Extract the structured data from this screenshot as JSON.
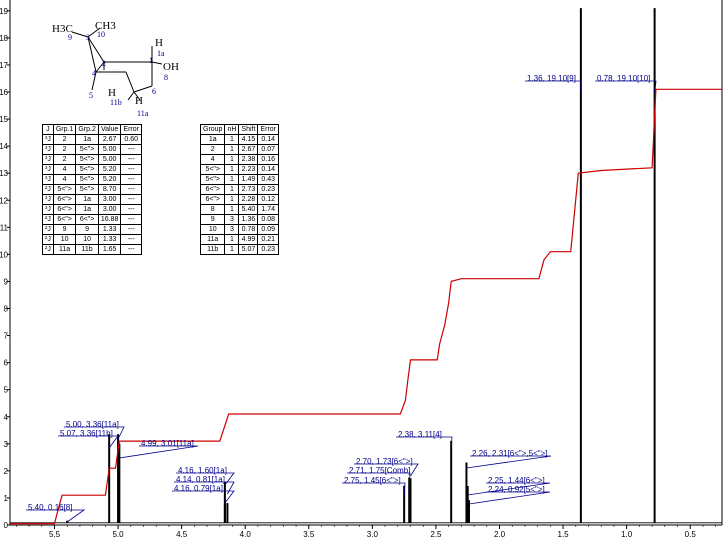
{
  "chart_data": {
    "type": "line",
    "title": "",
    "xlabel": "",
    "ylabel": "",
    "xlim": [
      5.85,
      0.25
    ],
    "ylim": [
      0,
      19.4
    ],
    "x_ticks": [
      "5.5",
      "5.0",
      "4.5",
      "4.0",
      "3.5",
      "3.0",
      "2.5",
      "2.0",
      "1.5",
      "1.0",
      "0.5"
    ],
    "x_tick_values": [
      5.5,
      5.0,
      4.5,
      4.0,
      3.5,
      3.0,
      2.5,
      2.0,
      1.5,
      1.0,
      0.5
    ],
    "y_ticks": [
      "0",
      "1",
      "2",
      "3",
      "4",
      "5",
      "6",
      "7",
      "8",
      "9",
      "10",
      "11",
      "12",
      "13",
      "14",
      "15",
      "16",
      "17",
      "18",
      "19"
    ],
    "grid": false,
    "colors": {
      "spectrum": "#000000",
      "integral": "#cc0000",
      "label_line": "#00008b",
      "label_text": "#00008b"
    },
    "peaks": [
      {
        "shift": 5.4,
        "height": 0.16,
        "label": "5.40, 0.16[8]"
      },
      {
        "shift": 5.07,
        "height": 3.36,
        "label": "5.07, 3.36[11b]"
      },
      {
        "shift": 5.0,
        "height": 3.36,
        "label": "5.00, 3.36[11a]"
      },
      {
        "shift": 4.99,
        "height": 3.01,
        "label": "4.99, 3.01[11a]"
      },
      {
        "shift": 4.16,
        "height": 1.6,
        "label": "4.16, 1.60[1a]"
      },
      {
        "shift": 4.14,
        "height": 0.81,
        "label": "4.14, 0.81[1a]"
      },
      {
        "shift": 4.16,
        "height": 0.79,
        "label": "4.16, 0.79[1a]"
      },
      {
        "shift": 2.75,
        "height": 1.45,
        "label": "2.75, 1.45[6<\">]"
      },
      {
        "shift": 2.71,
        "height": 1.75,
        "label": "2.71, 1.75[Comb]"
      },
      {
        "shift": 2.7,
        "height": 1.73,
        "label": "2.70, 1.73[6<\">]"
      },
      {
        "shift": 2.38,
        "height": 3.11,
        "label": "2.38, 3.11[4]"
      },
      {
        "shift": 2.26,
        "height": 2.31,
        "label": "2.26, 2.31[6<\">,5<\">]"
      },
      {
        "shift": 2.25,
        "height": 1.44,
        "label": "2.25, 1.44[6<\">]"
      },
      {
        "shift": 2.24,
        "height": 0.92,
        "label": "2.24, 0.92[5<\">]"
      },
      {
        "shift": 1.36,
        "height": 19.1,
        "label": "1.36, 19.10[9]"
      },
      {
        "shift": 0.78,
        "height": 19.1,
        "label": "0.78, 19.10[10]"
      }
    ],
    "integral_curve": [
      [
        5.85,
        0.05
      ],
      [
        5.5,
        0.05
      ],
      [
        5.47,
        0.6
      ],
      [
        5.44,
        1.1
      ],
      [
        5.1,
        1.1
      ],
      [
        5.07,
        2.1
      ],
      [
        5.02,
        2.1
      ],
      [
        4.99,
        3.1
      ],
      [
        4.2,
        3.1
      ],
      [
        4.13,
        4.1
      ],
      [
        2.78,
        4.1
      ],
      [
        2.74,
        4.6
      ],
      [
        2.72,
        5.4
      ],
      [
        2.7,
        6.1
      ],
      [
        2.49,
        6.1
      ],
      [
        2.47,
        6.7
      ],
      [
        2.43,
        7.4
      ],
      [
        2.4,
        8.2
      ],
      [
        2.38,
        9.0
      ],
      [
        2.3,
        9.1
      ],
      [
        2.25,
        9.1
      ],
      [
        1.69,
        9.1
      ],
      [
        1.65,
        9.8
      ],
      [
        1.6,
        10.1
      ],
      [
        1.5,
        10.1
      ],
      [
        1.44,
        10.1
      ],
      [
        1.38,
        13.0
      ],
      [
        1.2,
        13.1
      ],
      [
        0.8,
        13.2
      ],
      [
        0.77,
        16.1
      ],
      [
        0.25,
        16.1
      ]
    ]
  },
  "molecule": {
    "labels": [
      "H3C",
      "CH3",
      "9",
      "3",
      "10",
      "H",
      "1a",
      "1",
      "OH",
      "8",
      "2",
      "4",
      "5",
      "H",
      "11b",
      "H",
      "11a",
      "6"
    ]
  },
  "coupling_table": {
    "headers": [
      "J",
      "Grp.1",
      "Grp.2",
      "Value",
      "Error"
    ],
    "rows": [
      [
        "³J",
        "2",
        "1a",
        "2.67",
        "0.60"
      ],
      [
        "³J",
        "2",
        "5<\">",
        "5.00",
        "---"
      ],
      [
        "³J",
        "2",
        "5<\">",
        "5.00",
        "---"
      ],
      [
        "³J",
        "4",
        "5<\">",
        "5.20",
        "---"
      ],
      [
        "³J",
        "4",
        "5<\">",
        "5.20",
        "---"
      ],
      [
        "²J",
        "5<\">",
        "5<\">",
        "8.70",
        "---"
      ],
      [
        "³J",
        "6<\">",
        "1a",
        "3.00",
        "---"
      ],
      [
        "³J",
        "6<\">",
        "1a",
        "3.00",
        "---"
      ],
      [
        "²J",
        "6<\">",
        "6<\">",
        "16.88",
        "---"
      ],
      [
        "²J",
        "9",
        "9",
        "1.33",
        "---"
      ],
      [
        "²J",
        "10",
        "10",
        "1.33",
        "---"
      ],
      [
        "²J",
        "11a",
        "11b",
        "1.65",
        "---"
      ]
    ]
  },
  "shift_table": {
    "headers": [
      "Group",
      "nH",
      "Shift",
      "Error"
    ],
    "rows": [
      [
        "1a",
        "1",
        "4.15",
        "0.14"
      ],
      [
        "2",
        "1",
        "2.67",
        "0.07"
      ],
      [
        "4",
        "1",
        "2.38",
        "0.16"
      ],
      [
        "5<\">",
        "1",
        "2.23",
        "0.14"
      ],
      [
        "5<\">",
        "1",
        "1.49",
        "0.43"
      ],
      [
        "6<\">",
        "1",
        "2.73",
        "0.23"
      ],
      [
        "6<\">",
        "1",
        "2.28",
        "0.12"
      ],
      [
        "8",
        "1",
        "5.40",
        "1.74"
      ],
      [
        "9",
        "3",
        "1.36",
        "0.08"
      ],
      [
        "10",
        "3",
        "0.78",
        "0.09"
      ],
      [
        "11a",
        "1",
        "4.99",
        "0.21"
      ],
      [
        "11b",
        "1",
        "5.07",
        "0.23"
      ]
    ]
  }
}
